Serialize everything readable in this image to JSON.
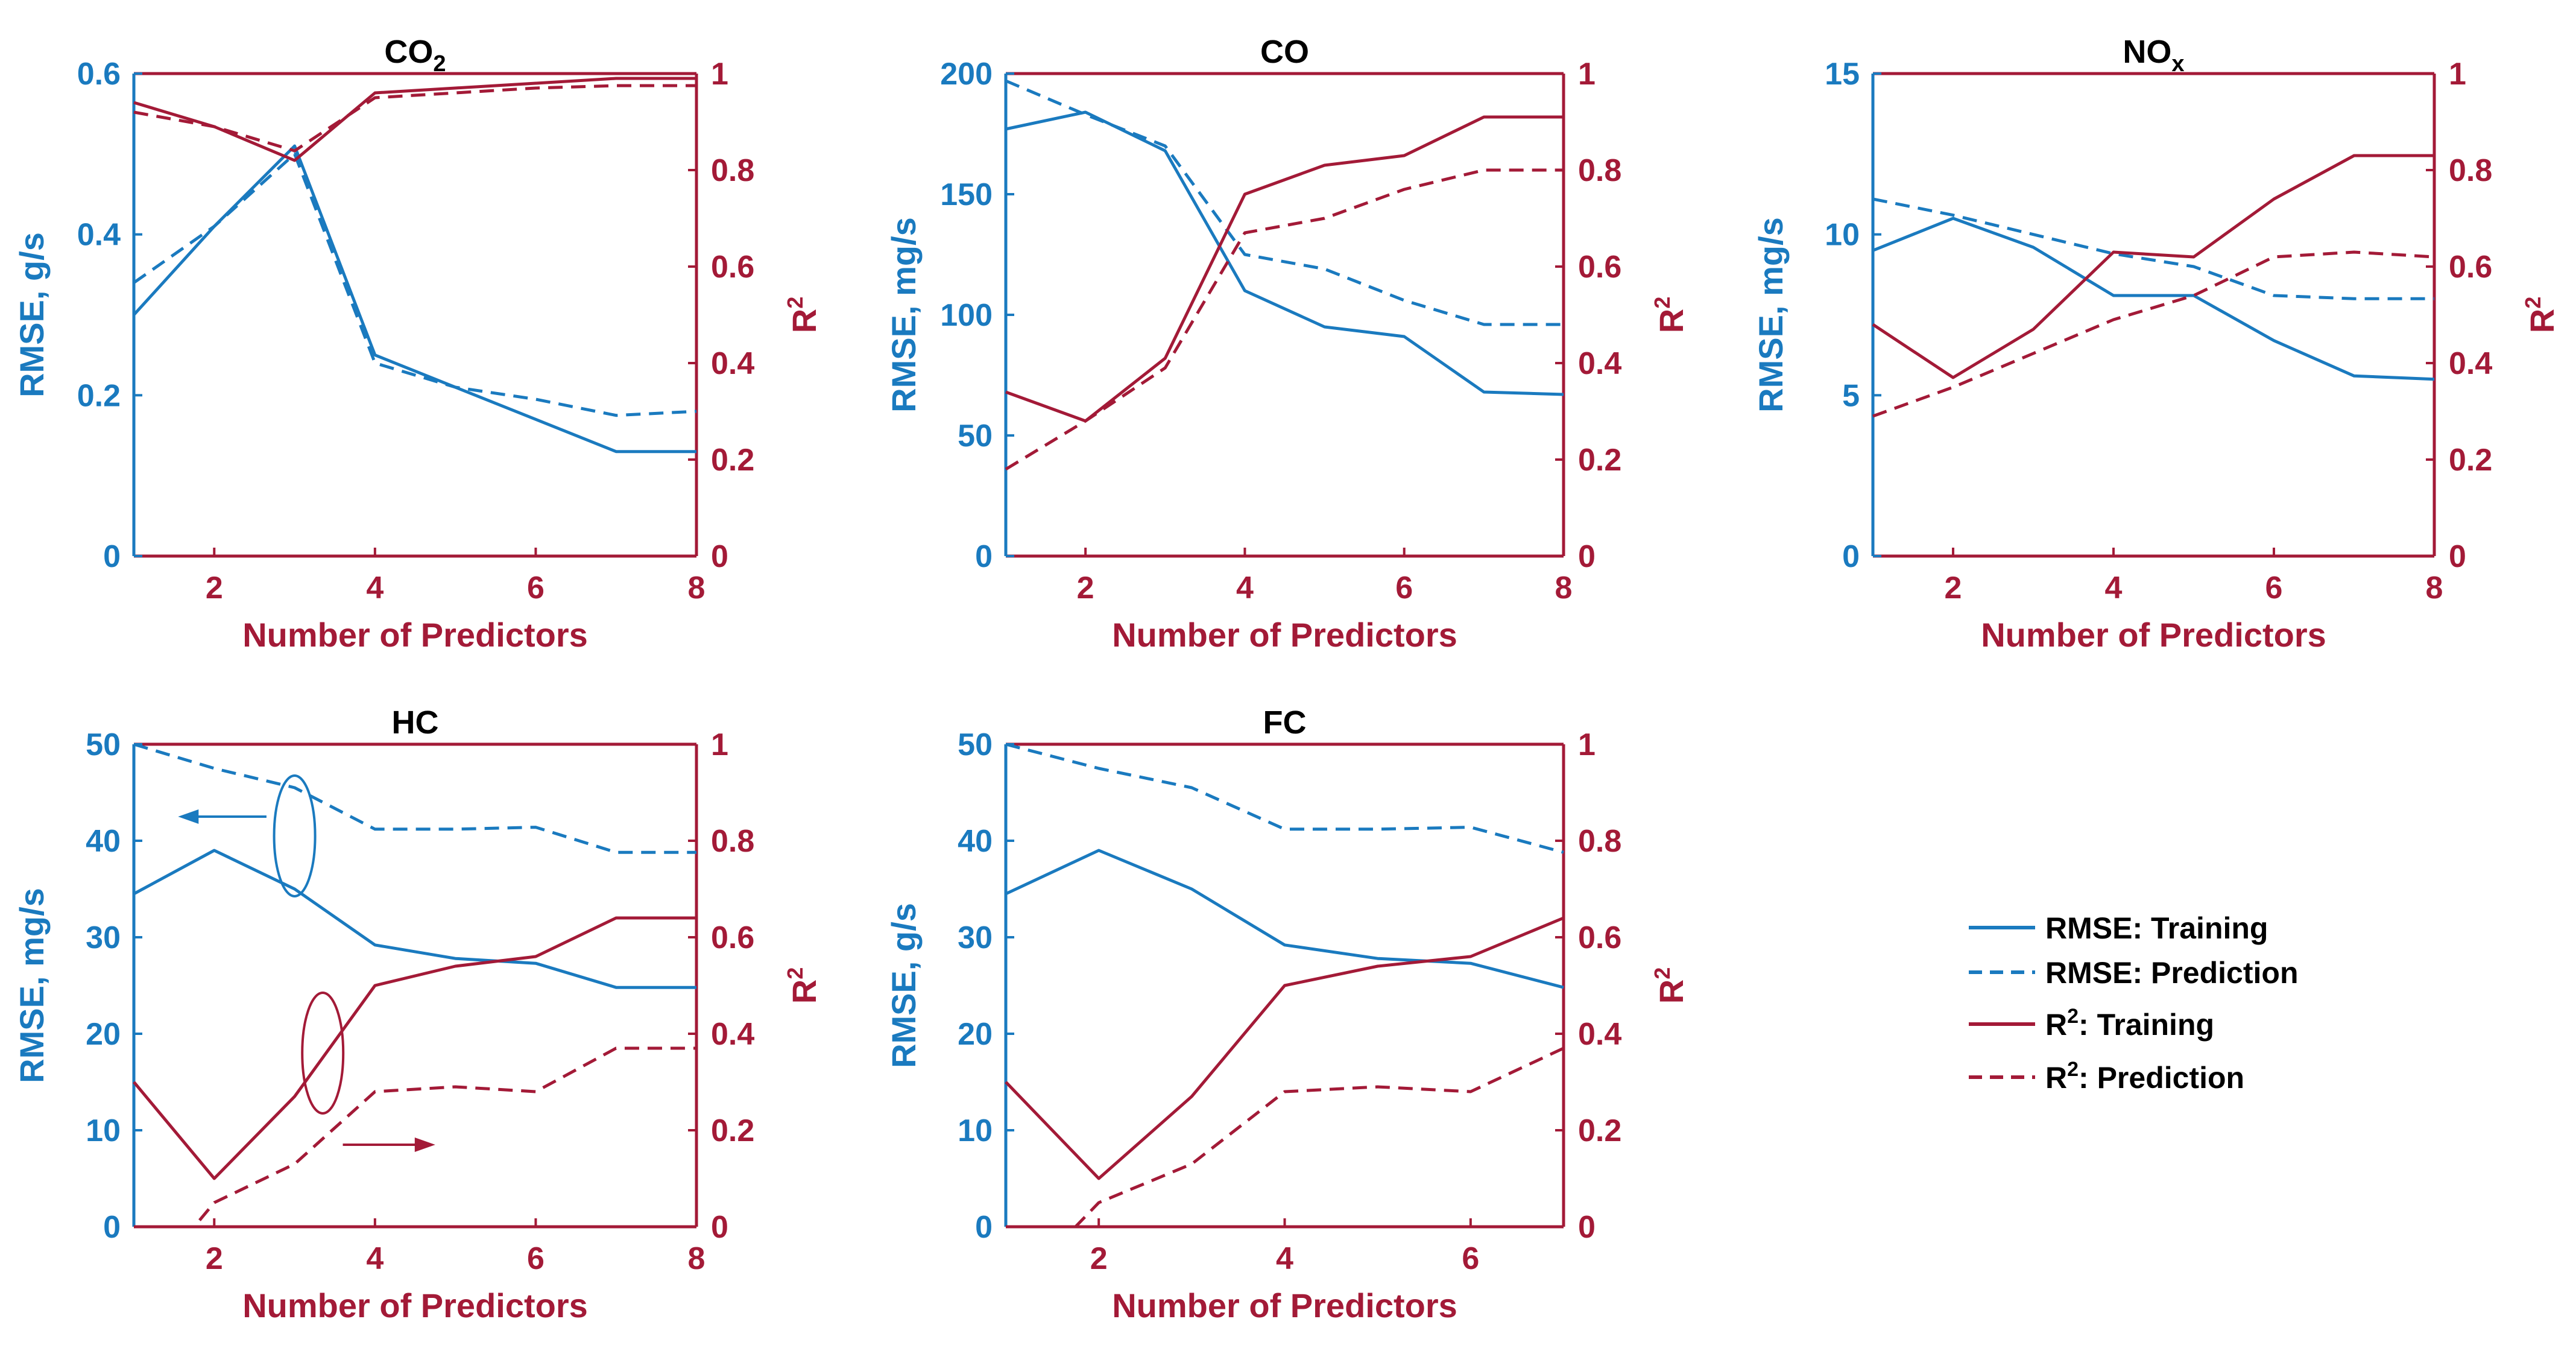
{
  "colors": {
    "rmse": "#1a7abf",
    "r2": "#a31a37",
    "title": "#000000",
    "background": "#ffffff"
  },
  "legend": {
    "rmse_training": {
      "text": "RMSE: Training"
    },
    "rmse_prediction": {
      "text": "RMSE: Prediction"
    },
    "r2_training": {
      "prefix": "R",
      "sup": "2",
      "suffix": ": Training"
    },
    "r2_prediction": {
      "prefix": "R",
      "sup": "2",
      "suffix": ": Prediction"
    }
  },
  "chart_data": [
    {
      "id": "co2",
      "type": "line",
      "title": {
        "main": "CO",
        "sub": "2"
      },
      "xlabel": "Number of Predictors",
      "ylabel_left": "RMSE, g/s",
      "ylabel_right": {
        "main": "R",
        "sup": "2"
      },
      "xlim": [
        1,
        8
      ],
      "xticks": [
        2,
        4,
        6,
        8
      ],
      "ylim_left": [
        0,
        0.6
      ],
      "yticks_left": [
        0,
        0.2,
        0.4,
        0.6
      ],
      "ytick_labels_left": [
        "0",
        "0.2",
        "0.4",
        "0.6"
      ],
      "ylim_right": [
        0,
        1
      ],
      "yticks_right": [
        0,
        0.2,
        0.4,
        0.6,
        0.8,
        1
      ],
      "ytick_labels_right": [
        "0",
        "0.2",
        "0.4",
        "0.6",
        "0.8",
        "1"
      ],
      "series": [
        {
          "name": "RMSE: Training",
          "axis": "left",
          "style": "solid",
          "x": [
            1,
            2,
            3,
            4,
            5,
            6,
            7,
            8
          ],
          "values": [
            0.3,
            0.41,
            0.51,
            0.25,
            0.21,
            0.17,
            0.13,
            0.13
          ]
        },
        {
          "name": "RMSE: Prediction",
          "axis": "left",
          "style": "dashed",
          "x": [
            1,
            2,
            3,
            4,
            5,
            6,
            7,
            8
          ],
          "values": [
            0.34,
            0.41,
            0.5,
            0.24,
            0.21,
            0.195,
            0.175,
            0.18
          ]
        },
        {
          "name": "R2: Training",
          "axis": "right",
          "style": "solid",
          "x": [
            1,
            2,
            3,
            4,
            5,
            6,
            7,
            8
          ],
          "values": [
            0.94,
            0.89,
            0.82,
            0.96,
            0.97,
            0.98,
            0.99,
            0.99
          ]
        },
        {
          "name": "R2: Prediction",
          "axis": "right",
          "style": "dashed",
          "x": [
            1,
            2,
            3,
            4,
            5,
            6,
            7,
            8
          ],
          "values": [
            0.92,
            0.89,
            0.84,
            0.95,
            0.96,
            0.97,
            0.975,
            0.975
          ]
        }
      ]
    },
    {
      "id": "co",
      "type": "line",
      "title": {
        "main": "CO",
        "sub": ""
      },
      "xlabel": "Number of Predictors",
      "ylabel_left": "RMSE, mg/s",
      "ylabel_right": {
        "main": "R",
        "sup": "2"
      },
      "xlim": [
        1,
        8
      ],
      "xticks": [
        2,
        4,
        6,
        8
      ],
      "ylim_left": [
        0,
        200
      ],
      "yticks_left": [
        0,
        50,
        100,
        150,
        200
      ],
      "ytick_labels_left": [
        "0",
        "50",
        "100",
        "150",
        "200"
      ],
      "ylim_right": [
        0,
        1
      ],
      "yticks_right": [
        0,
        0.2,
        0.4,
        0.6,
        0.8,
        1
      ],
      "ytick_labels_right": [
        "0",
        "0.2",
        "0.4",
        "0.6",
        "0.8",
        "1"
      ],
      "series": [
        {
          "name": "RMSE: Training",
          "axis": "left",
          "style": "solid",
          "x": [
            1,
            2,
            3,
            4,
            5,
            6,
            7,
            8
          ],
          "values": [
            177,
            184,
            168,
            110,
            95,
            91,
            68,
            67
          ]
        },
        {
          "name": "RMSE: Prediction",
          "axis": "left",
          "style": "dashed",
          "x": [
            1,
            2,
            3,
            4,
            5,
            6,
            7,
            8
          ],
          "values": [
            197,
            183,
            170,
            125,
            119,
            106,
            96,
            96
          ]
        },
        {
          "name": "R2: Training",
          "axis": "right",
          "style": "solid",
          "x": [
            1,
            2,
            3,
            4,
            5,
            6,
            7,
            8
          ],
          "values": [
            0.34,
            0.28,
            0.41,
            0.75,
            0.81,
            0.83,
            0.91,
            0.91
          ]
        },
        {
          "name": "R2: Prediction",
          "axis": "right",
          "style": "dashed",
          "x": [
            1,
            2,
            3,
            4,
            5,
            6,
            7,
            8
          ],
          "values": [
            0.18,
            0.28,
            0.39,
            0.67,
            0.7,
            0.76,
            0.8,
            0.8
          ]
        }
      ]
    },
    {
      "id": "nox",
      "type": "line",
      "title": {
        "main": "NO",
        "sub": "x"
      },
      "xlabel": "Number of Predictors",
      "ylabel_left": "RMSE, mg/s",
      "ylabel_right": {
        "main": "R",
        "sup": "2"
      },
      "xlim": [
        1,
        8
      ],
      "xticks": [
        2,
        4,
        6,
        8
      ],
      "ylim_left": [
        0,
        15
      ],
      "yticks_left": [
        0,
        5,
        10,
        15
      ],
      "ytick_labels_left": [
        "0",
        "5",
        "10",
        "15"
      ],
      "ylim_right": [
        0,
        1
      ],
      "yticks_right": [
        0,
        0.2,
        0.4,
        0.6,
        0.8,
        1
      ],
      "ytick_labels_right": [
        "0",
        "0.2",
        "0.4",
        "0.6",
        "0.8",
        "1"
      ],
      "series": [
        {
          "name": "RMSE: Training",
          "axis": "left",
          "style": "solid",
          "x": [
            1,
            2,
            3,
            4,
            5,
            6,
            7,
            8
          ],
          "values": [
            9.5,
            10.5,
            9.6,
            8.1,
            8.1,
            6.7,
            5.6,
            5.5
          ]
        },
        {
          "name": "RMSE: Prediction",
          "axis": "left",
          "style": "dashed",
          "x": [
            1,
            2,
            3,
            4,
            5,
            6,
            7,
            8
          ],
          "values": [
            11.1,
            10.6,
            10.0,
            9.4,
            9.0,
            8.1,
            8.0,
            8.0
          ]
        },
        {
          "name": "R2: Training",
          "axis": "right",
          "style": "solid",
          "x": [
            1,
            2,
            3,
            4,
            5,
            6,
            7,
            8
          ],
          "values": [
            0.48,
            0.37,
            0.47,
            0.63,
            0.62,
            0.74,
            0.83,
            0.83
          ]
        },
        {
          "name": "R2: Prediction",
          "axis": "right",
          "style": "dashed",
          "x": [
            1,
            2,
            3,
            4,
            5,
            6,
            7,
            8
          ],
          "values": [
            0.29,
            0.35,
            0.42,
            0.49,
            0.54,
            0.62,
            0.63,
            0.62
          ]
        }
      ]
    },
    {
      "id": "hc",
      "type": "line",
      "title": {
        "main": "HC",
        "sub": ""
      },
      "xlabel": "Number of Predictors",
      "ylabel_left": "RMSE, mg/s",
      "ylabel_right": {
        "main": "R",
        "sup": "2"
      },
      "xlim": [
        1,
        8
      ],
      "xticks": [
        2,
        4,
        6,
        8
      ],
      "ylim_left": [
        0,
        50
      ],
      "yticks_left": [
        0,
        10,
        20,
        30,
        40,
        50
      ],
      "ytick_labels_left": [
        "0",
        "10",
        "20",
        "30",
        "40",
        "50"
      ],
      "ylim_right": [
        0,
        1
      ],
      "yticks_right": [
        0,
        0.2,
        0.4,
        0.6,
        0.8,
        1
      ],
      "ytick_labels_right": [
        "0",
        "0.2",
        "0.4",
        "0.6",
        "0.8",
        "1"
      ],
      "annotations": [
        "left-pointing arrow with ellipse marking RMSE curves",
        "right-pointing arrow with ellipse marking R2 curves"
      ],
      "series": [
        {
          "name": "RMSE: Training",
          "axis": "left",
          "style": "solid",
          "x": [
            1,
            2,
            3,
            4,
            5,
            6,
            7,
            8
          ],
          "values": [
            34.5,
            39,
            35,
            29.2,
            27.8,
            27.3,
            24.8,
            24.8
          ]
        },
        {
          "name": "RMSE: Prediction",
          "axis": "left",
          "style": "dashed",
          "x": [
            1,
            2,
            3,
            4,
            5,
            6,
            7,
            8
          ],
          "values": [
            50,
            47.5,
            45.5,
            41.2,
            41.2,
            41.4,
            38.8,
            38.8
          ]
        },
        {
          "name": "R2: Training",
          "axis": "right",
          "style": "solid",
          "x": [
            1,
            2,
            3,
            4,
            5,
            6,
            7,
            8
          ],
          "values": [
            0.3,
            0.1,
            0.27,
            0.5,
            0.54,
            0.56,
            0.64,
            0.64
          ]
        },
        {
          "name": "R2: Prediction",
          "axis": "right",
          "style": "dashed",
          "x": [
            1,
            1.75,
            2,
            3,
            4,
            5,
            6,
            7,
            8
          ],
          "values": [
            0,
            0,
            0.05,
            0.13,
            0.28,
            0.29,
            0.28,
            0.37,
            0.37
          ]
        }
      ]
    },
    {
      "id": "fc",
      "type": "line",
      "title": {
        "main": "FC",
        "sub": ""
      },
      "xlabel": "Number of Predictors",
      "ylabel_left": "RMSE, g/s",
      "ylabel_right": {
        "main": "R",
        "sup": "2"
      },
      "xlim": [
        1,
        7
      ],
      "xticks": [
        2,
        4,
        6
      ],
      "ylim_left": [
        0,
        50
      ],
      "yticks_left": [
        0,
        10,
        20,
        30,
        40,
        50
      ],
      "ytick_labels_left": [
        "0",
        "10",
        "20",
        "30",
        "40",
        "50"
      ],
      "ylim_right": [
        0,
        1
      ],
      "yticks_right": [
        0,
        0.2,
        0.4,
        0.6,
        0.8,
        1
      ],
      "ytick_labels_right": [
        "0",
        "0.2",
        "0.4",
        "0.6",
        "0.8",
        "1"
      ],
      "series": [
        {
          "name": "RMSE: Training",
          "axis": "left",
          "style": "solid",
          "x": [
            1,
            2,
            3,
            4,
            5,
            6,
            7
          ],
          "values": [
            34.5,
            39,
            35,
            29.2,
            27.8,
            27.3,
            24.8
          ]
        },
        {
          "name": "RMSE: Prediction",
          "axis": "left",
          "style": "dashed",
          "x": [
            1,
            2,
            3,
            4,
            5,
            6,
            7
          ],
          "values": [
            50,
            47.5,
            45.5,
            41.2,
            41.2,
            41.4,
            38.8
          ]
        },
        {
          "name": "R2: Training",
          "axis": "right",
          "style": "solid",
          "x": [
            1,
            2,
            3,
            4,
            5,
            6,
            7
          ],
          "values": [
            0.3,
            0.1,
            0.27,
            0.5,
            0.54,
            0.56,
            0.64
          ]
        },
        {
          "name": "R2: Prediction",
          "axis": "right",
          "style": "dashed",
          "x": [
            1,
            1.75,
            2,
            3,
            4,
            5,
            6,
            7
          ],
          "values": [
            0,
            0,
            0.05,
            0.13,
            0.28,
            0.29,
            0.28,
            0.37
          ]
        }
      ]
    }
  ]
}
